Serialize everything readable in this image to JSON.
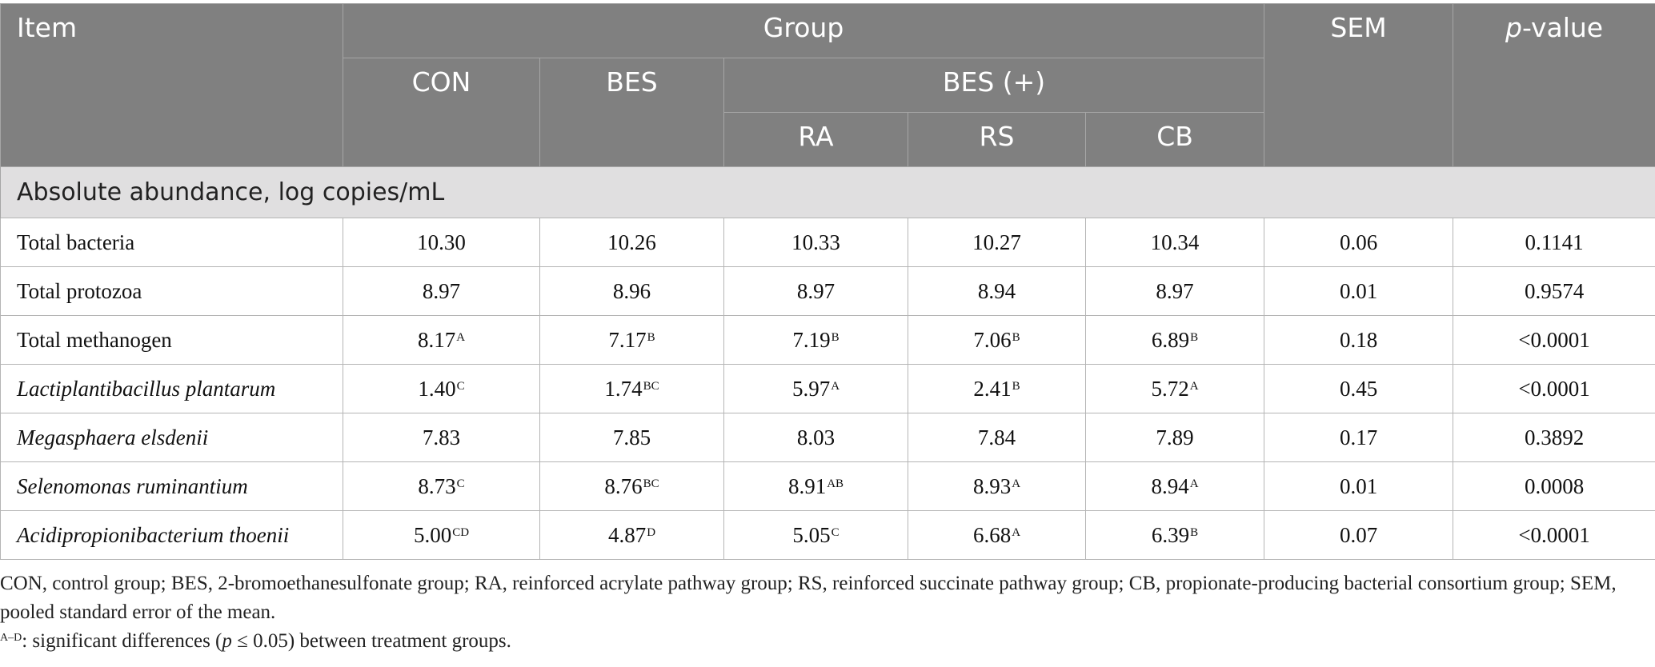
{
  "header": {
    "item": "Item",
    "group": "Group",
    "con": "CON",
    "bes": "BES",
    "bes_plus": "BES (+)",
    "ra": "RA",
    "rs": "RS",
    "cb": "CB",
    "sem": "SEM",
    "p_italic": "p",
    "p_rest": "-value"
  },
  "section": "Absolute abundance, log copies/mL",
  "rows": [
    {
      "name": "Total bacteria",
      "italic": false,
      "cells": [
        [
          "10.30",
          ""
        ],
        [
          "10.26",
          ""
        ],
        [
          "10.33",
          ""
        ],
        [
          "10.27",
          ""
        ],
        [
          "10.34",
          ""
        ]
      ],
      "sem": "0.06",
      "p": "0.1141"
    },
    {
      "name": "Total protozoa",
      "italic": false,
      "cells": [
        [
          "8.97",
          ""
        ],
        [
          "8.96",
          ""
        ],
        [
          "8.97",
          ""
        ],
        [
          "8.94",
          ""
        ],
        [
          "8.97",
          ""
        ]
      ],
      "sem": "0.01",
      "p": "0.9574"
    },
    {
      "name": "Total methanogen",
      "italic": false,
      "cells": [
        [
          "8.17",
          "A"
        ],
        [
          "7.17",
          "B"
        ],
        [
          "7.19",
          "B"
        ],
        [
          "7.06",
          "B"
        ],
        [
          "6.89",
          "B"
        ]
      ],
      "sem": "0.18",
      "p": "<0.0001"
    },
    {
      "name": "Lactiplantibacillus plantarum",
      "italic": true,
      "cells": [
        [
          "1.40",
          "C"
        ],
        [
          "1.74",
          "BC"
        ],
        [
          "5.97",
          "A"
        ],
        [
          "2.41",
          "B"
        ],
        [
          "5.72",
          "A"
        ]
      ],
      "sem": "0.45",
      "p": "<0.0001"
    },
    {
      "name": "Megasphaera elsdenii",
      "italic": true,
      "cells": [
        [
          "7.83",
          ""
        ],
        [
          "7.85",
          ""
        ],
        [
          "8.03",
          ""
        ],
        [
          "7.84",
          ""
        ],
        [
          "7.89",
          ""
        ]
      ],
      "sem": "0.17",
      "p": "0.3892"
    },
    {
      "name": "Selenomonas ruminantium",
      "italic": true,
      "cells": [
        [
          "8.73",
          "C"
        ],
        [
          "8.76",
          "BC"
        ],
        [
          "8.91",
          "AB"
        ],
        [
          "8.93",
          "A"
        ],
        [
          "8.94",
          "A"
        ]
      ],
      "sem": "0.01",
      "p": "0.0008"
    },
    {
      "name": "Acidipropionibacterium thoenii",
      "italic": true,
      "cells": [
        [
          "5.00",
          "CD"
        ],
        [
          "4.87",
          "D"
        ],
        [
          "5.05",
          "C"
        ],
        [
          "6.68",
          "A"
        ],
        [
          "6.39",
          "B"
        ]
      ],
      "sem": "0.07",
      "p": "<0.0001"
    }
  ],
  "footnotes": {
    "line1": "CON, control group; BES, 2-bromoethanesulfonate group; RA, reinforced acrylate pathway group; RS, reinforced succinate pathway group; CB, propionate-producing bacterial consortium group; SEM, pooled standard error of the mean.",
    "line2_sup": "A–D",
    "line2_a": ": significant differences (",
    "line2_p": "p",
    "line2_b": " ≤ 0.05) between treatment groups."
  }
}
